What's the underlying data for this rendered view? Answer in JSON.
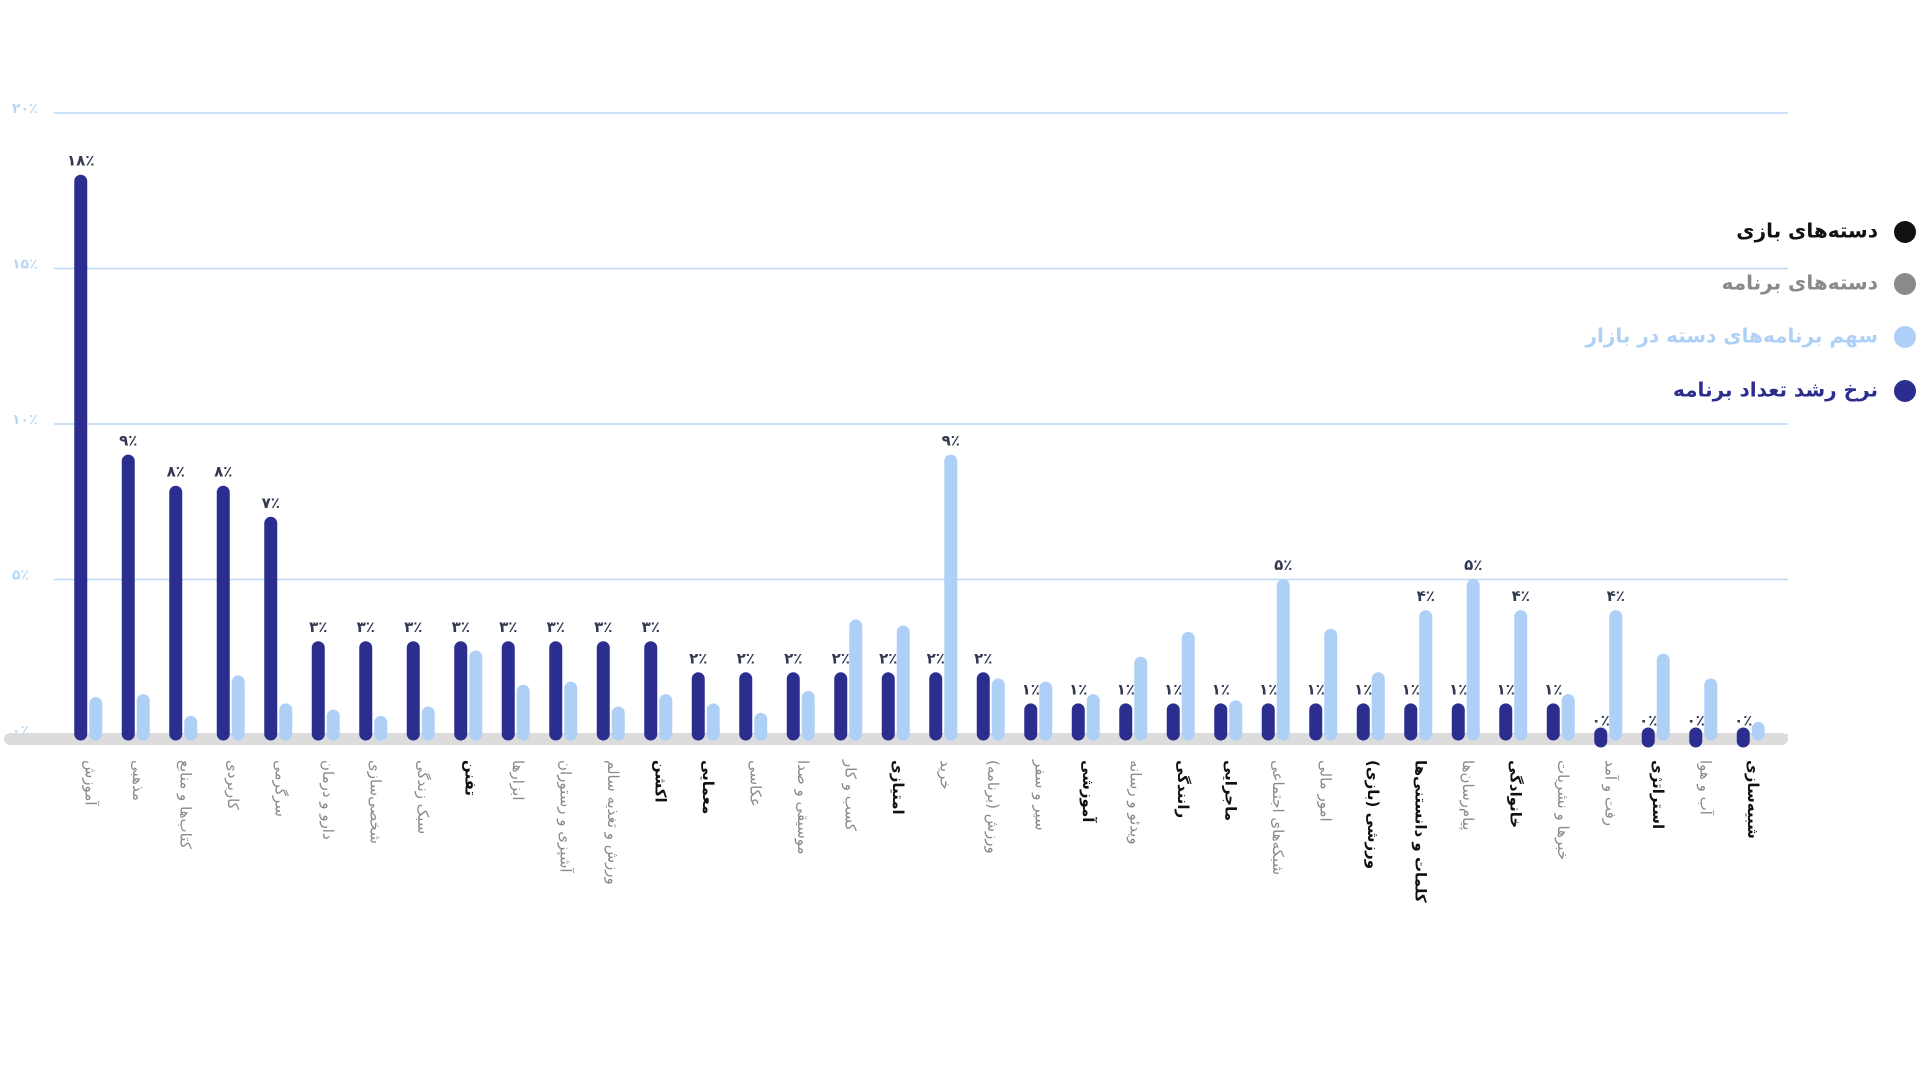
{
  "chart_data": {
    "type": "bar",
    "categories": [
      "آموزش",
      "مذهبی",
      "کتاب‌ها و منابع",
      "کاربردی",
      "سرگرمی",
      "دارو و درمان",
      "شخصی‌سازی",
      "سبک زندگی",
      "تفنن",
      "ابزارها",
      "آشپزی و رستوران",
      "ورزش و تغذیه سالم",
      "اکشن",
      "معمایی",
      "عکاسی",
      "موسیقی و صدا",
      "کسب و کار",
      "امتیازی",
      "خرید",
      "ورزش (برنامه)",
      "سیر و سفر",
      "آموزشی",
      "ویدئو و رسانه",
      "رانندگی",
      "ماجرایی",
      "شبکه‌های اجتماعی",
      "امور مالی",
      "ورزشی (بازی)",
      "کلمات و دانستنی‌ها",
      "پیام‌رسان‌ها",
      "خانوادگی",
      "خبرها و نشریات",
      "رفت و آمد",
      "استراتژی",
      "آب و هوا",
      "شبیه‌سازی"
    ],
    "category_groups": [
      {
        "name": "دسته‌های بازی",
        "color": "#111111"
      },
      {
        "name": "دسته‌های برنامه",
        "color": "#8a8a8a"
      }
    ],
    "category_group": [
      1,
      1,
      1,
      1,
      1,
      1,
      1,
      1,
      0,
      1,
      1,
      1,
      0,
      0,
      1,
      1,
      1,
      0,
      1,
      1,
      1,
      0,
      1,
      0,
      0,
      1,
      1,
      0,
      0,
      1,
      0,
      1,
      1,
      0,
      1,
      0
    ],
    "series": [
      {
        "name": "سهم برنامه‌های دسته در بازار",
        "color": "#aed0f7",
        "values": [
          1.2,
          1.3,
          0.6,
          1.9,
          1.0,
          0.8,
          0.6,
          0.9,
          2.7,
          1.6,
          1.7,
          0.9,
          1.3,
          1.0,
          0.7,
          1.4,
          3.7,
          3.5,
          9,
          1.8,
          1.7,
          1.3,
          2.5,
          3.3,
          1.1,
          5,
          3.4,
          2.0,
          4,
          5,
          4,
          1.3,
          4,
          2.6,
          1.8,
          0.4
        ],
        "value_labels": [
          null,
          null,
          null,
          null,
          null,
          null,
          null,
          null,
          null,
          null,
          null,
          null,
          null,
          null,
          null,
          null,
          null,
          null,
          "۹٪",
          null,
          null,
          null,
          null,
          null,
          null,
          "۵٪",
          null,
          null,
          "۴٪",
          "۵٪",
          "۴٪",
          null,
          "۴٪",
          null,
          null,
          null
        ]
      },
      {
        "name": "نرخ رشد تعداد برنامه",
        "color": "#2b2e8f",
        "values": [
          18,
          9,
          8,
          8,
          7,
          3,
          3,
          3,
          3,
          3,
          3,
          3,
          3,
          2,
          2,
          2,
          2,
          2,
          2,
          2,
          1,
          1,
          1,
          1,
          1,
          1,
          1,
          1,
          1,
          1,
          1,
          1,
          0,
          0,
          0,
          0
        ],
        "value_labels": [
          "۱۸٪",
          "۹٪",
          "۸٪",
          "۸٪",
          "۷٪",
          "۳٪",
          "۳٪",
          "۳٪",
          "۳٪",
          "۳٪",
          "۳٪",
          "۳٪",
          "۳٪",
          "۲٪",
          "۲٪",
          "۲٪",
          "۲٪",
          "۲٪",
          "۲٪",
          "۲٪",
          "۱٪",
          "۱٪",
          "۱٪",
          "۱٪",
          "۱٪",
          "۱٪",
          "۱٪",
          "۱٪",
          "۱٪",
          "۱٪",
          "۱٪",
          "۱٪",
          "۰٪",
          "۰٪",
          "۰٪",
          "۰٪"
        ]
      }
    ],
    "ylim": [
      0,
      20
    ],
    "yticks": [
      {
        "value": 0,
        "label": "۰٪"
      },
      {
        "value": 5,
        "label": "۵٪"
      },
      {
        "value": 10,
        "label": "۱۰٪"
      },
      {
        "value": 15,
        "label": "۱۵٪"
      },
      {
        "value": 20,
        "label": "۲۰٪"
      }
    ],
    "grid": true,
    "legend": "top-right"
  }
}
